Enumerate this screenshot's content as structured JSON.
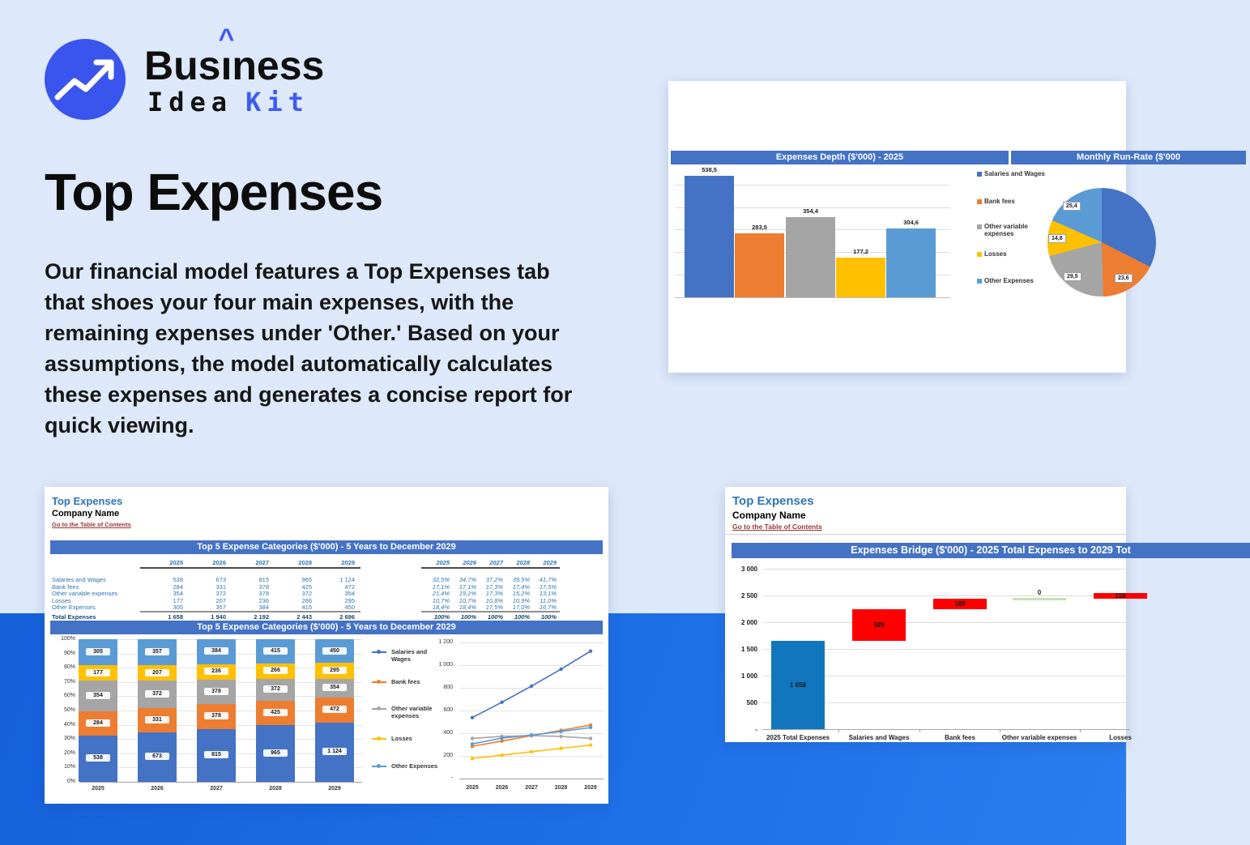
{
  "page": {
    "background": "#dde8fa",
    "band_top": "#1560da",
    "band_bottom": "#2b7cf0"
  },
  "logo": {
    "word_pre": "Bus",
    "word_i": "ı",
    "word_post": "ness",
    "line2_left": "Idea",
    "line2_right": "Kit",
    "circle_color": "#3a55ed",
    "accent_color": "#3d5bf0"
  },
  "hero": {
    "title": "Top Expenses",
    "description": "Our financial model features a Top Expenses tab that shoes your four main expenses, with the remaining expenses under 'Other.' Based on your assumptions, the model automatically calculates these expenses and generates a concise report for quick viewing."
  },
  "depth_card": {
    "header_left": "Expenses Depth ($'000) - 2025",
    "header_right": "Monthly Run-Rate ($'000"
  },
  "sheet1": {
    "title": "Top Expenses",
    "company": "Company Name",
    "link": "Go to the Table of Contents",
    "header1": "Top 5 Expense Categories ($'000) - 5 Years to December 2029",
    "header2": "Top 5 Expense Categories ($'000) - 5 Years to December 2029"
  },
  "sheet2": {
    "title": "Top Expenses",
    "company": "Company Name",
    "link": "Go to the Table of Contents",
    "header": "Expenses Bridge ($'000) - 2025 Total Expenses to 2029 Tot"
  },
  "colors": {
    "series": [
      "#4472C4",
      "#ED7D31",
      "#A5A5A5",
      "#FFC000",
      "#5B9BD5"
    ],
    "red": "#FF0000",
    "bridge_blue": "#1176BD",
    "connector_green": "#C6E0B4",
    "header_bar": "#4472C4"
  },
  "chart_data": [
    {
      "id": "expenses_depth",
      "type": "bar",
      "title": "Expenses Depth ($'000) - 2025",
      "categories": [
        "Salaries and Wages",
        "Bank fees",
        "Other variable expenses",
        "Losses",
        "Other Expenses"
      ],
      "values": [
        538.5,
        283.5,
        354.4,
        177.2,
        304.6
      ],
      "value_labels": [
        "538,5",
        "283,5",
        "354,4",
        "177,2",
        "304,6"
      ],
      "colors": [
        "#4472C4",
        "#ED7D31",
        "#A5A5A5",
        "#FFC000",
        "#5B9BD5"
      ],
      "ylim": [
        0,
        600
      ],
      "grid_step": 100,
      "grid": true,
      "legend_position": "right"
    },
    {
      "id": "monthly_run_rate",
      "type": "pie",
      "title": "Monthly Run-Rate ($'000",
      "slices": [
        {
          "name": "Salaries and Wages",
          "value": 44.9,
          "color": "#4472C4",
          "label": ""
        },
        {
          "name": "Bank fees",
          "value": 23.6,
          "color": "#ED7D31",
          "label": "23,6"
        },
        {
          "name": "Other variable expenses",
          "value": 29.5,
          "color": "#A5A5A5",
          "label": "29,5"
        },
        {
          "name": "Losses",
          "value": 14.8,
          "color": "#FFC000",
          "label": "14,8"
        },
        {
          "name": "Other Expenses",
          "value": 25.4,
          "color": "#5B9BD5",
          "label": "25,4"
        }
      ]
    },
    {
      "id": "top5_table",
      "type": "table",
      "title": "Top 5 Expense Categories ($'000) - 5 Years to December 2029",
      "years": [
        "2025",
        "2026",
        "2027",
        "2028",
        "2029"
      ],
      "rows": [
        {
          "label": "Salaries and Wages",
          "values": [
            "538",
            "673",
            "815",
            "965",
            "1 124"
          ],
          "pct": [
            "32,5%",
            "34,7%",
            "37,2%",
            "39,5%",
            "41,7%"
          ]
        },
        {
          "label": "Bank fees",
          "values": [
            "284",
            "331",
            "378",
            "425",
            "472"
          ],
          "pct": [
            "17,1%",
            "17,1%",
            "17,3%",
            "17,4%",
            "17,5%"
          ]
        },
        {
          "label": "Other variable expenses",
          "values": [
            "354",
            "372",
            "378",
            "372",
            "354"
          ],
          "pct": [
            "21,4%",
            "19,2%",
            "17,3%",
            "15,2%",
            "13,1%"
          ]
        },
        {
          "label": "Losses",
          "values": [
            "177",
            "207",
            "236",
            "266",
            "295"
          ],
          "pct": [
            "10,7%",
            "10,7%",
            "10,8%",
            "10,9%",
            "11,0%"
          ]
        },
        {
          "label": "Other Expenses",
          "values": [
            "305",
            "357",
            "384",
            "415",
            "450"
          ],
          "pct": [
            "18,4%",
            "18,4%",
            "17,5%",
            "17,0%",
            "16,7%"
          ]
        }
      ],
      "total": {
        "label": "Total Expenses",
        "values": [
          "1 658",
          "1 940",
          "2 192",
          "2 443",
          "2 696"
        ],
        "pct": [
          "100%",
          "100%",
          "100%",
          "100%",
          "100%"
        ]
      }
    },
    {
      "id": "top5_stacked",
      "type": "bar",
      "stacked": true,
      "title": "Top 5 Expense Categories ($'000) - 5 Years to December 2029",
      "categories": [
        "2025",
        "2026",
        "2027",
        "2028",
        "2029"
      ],
      "totals": [
        1658,
        1940,
        2192,
        2443,
        2696
      ],
      "ytick_labels": [
        "100%",
        "90%",
        "80%",
        "70%",
        "60%",
        "50%",
        "40%",
        "30%",
        "20%",
        "10%",
        "0%"
      ],
      "series": [
        {
          "name": "Salaries and Wages",
          "color": "#4472C4",
          "values": [
            538,
            673,
            815,
            965,
            1124
          ],
          "labels": [
            "538",
            "673",
            "815",
            "965",
            "1 124"
          ]
        },
        {
          "name": "Bank fees",
          "color": "#ED7D31",
          "values": [
            284,
            331,
            378,
            425,
            472
          ],
          "labels": [
            "284",
            "331",
            "378",
            "425",
            "472"
          ]
        },
        {
          "name": "Other variable expenses",
          "color": "#A5A5A5",
          "values": [
            354,
            372,
            378,
            372,
            354
          ],
          "labels": [
            "354",
            "372",
            "378",
            "372",
            "354"
          ]
        },
        {
          "name": "Losses",
          "color": "#FFC000",
          "values": [
            177,
            207,
            236,
            266,
            295
          ],
          "labels": [
            "177",
            "207",
            "236",
            "266",
            "295"
          ]
        },
        {
          "name": "Other Expenses",
          "color": "#5B9BD5",
          "values": [
            305,
            357,
            384,
            415,
            450
          ],
          "labels": [
            "305",
            "357",
            "384",
            "415",
            "450"
          ]
        }
      ]
    },
    {
      "id": "top5_lines",
      "type": "line",
      "categories": [
        "2025",
        "2026",
        "2027",
        "2028",
        "2029"
      ],
      "ylim": [
        0,
        1200
      ],
      "ytick_labels": [
        "1 200",
        "1 000",
        "800",
        "600",
        "400",
        "200",
        "-"
      ],
      "series": [
        {
          "name": "Salaries and Wages",
          "color": "#4472C4",
          "values": [
            538,
            673,
            815,
            965,
            1124
          ]
        },
        {
          "name": "Bank fees",
          "color": "#ED7D31",
          "values": [
            284,
            331,
            378,
            425,
            472
          ]
        },
        {
          "name": "Other variable expenses",
          "color": "#A5A5A5",
          "values": [
            354,
            372,
            378,
            372,
            354
          ]
        },
        {
          "name": "Losses",
          "color": "#FFC000",
          "values": [
            177,
            207,
            236,
            266,
            295
          ]
        },
        {
          "name": "Other Expenses",
          "color": "#5B9BD5",
          "values": [
            305,
            357,
            384,
            415,
            450
          ]
        }
      ]
    },
    {
      "id": "expenses_bridge",
      "type": "waterfall",
      "title": "Expenses Bridge ($'000) - 2025 Total Expenses to 2029 Tot",
      "categories": [
        "2025 Total Expenses",
        "Salaries and Wages",
        "Bank fees",
        "Other variable expenses",
        "Losses"
      ],
      "ylim": [
        0,
        3000
      ],
      "ytick_labels": [
        "3 000",
        "2 500",
        "2 000",
        "1 500",
        "1 000",
        "500",
        "-"
      ],
      "steps": [
        {
          "label": "1 658",
          "start": 0,
          "end": 1658,
          "color": "#1176BD"
        },
        {
          "label": "585",
          "start": 1658,
          "end": 2243,
          "color": "#FF0000"
        },
        {
          "label": "189",
          "start": 2243,
          "end": 2432,
          "color": "#FF0000"
        },
        {
          "label": "0",
          "start": 2432,
          "end": 2432,
          "color": "#C6E0B4"
        },
        {
          "label": "118",
          "start": 2432,
          "end": 2550,
          "color": "#FF0000"
        }
      ]
    }
  ]
}
